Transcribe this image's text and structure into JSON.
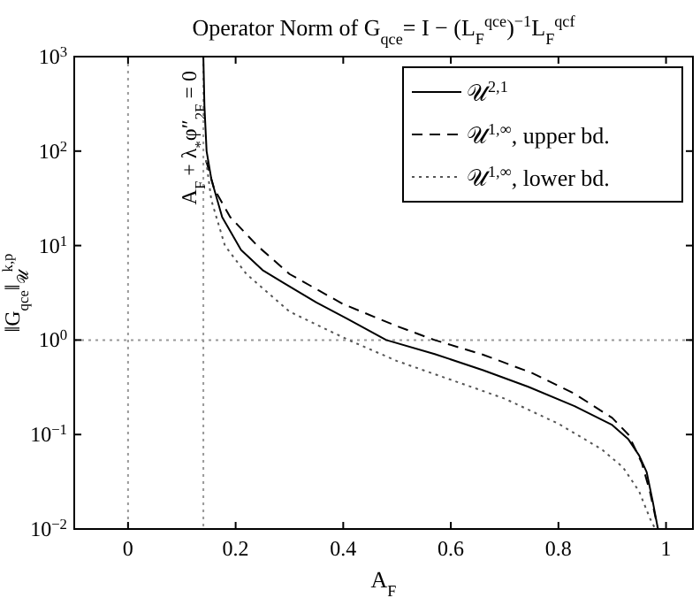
{
  "chart_data": {
    "type": "line",
    "title": "Operator Norm of G$_{qce}$= I − (L$_{F}$$^{qce}$)$^{−1}$L$_{F}$$^{qcf}$",
    "xlabel": "A$_{F}$",
    "ylabel": "‖G$_{qce}$‖$_{𝒰}$$^{k,p}$",
    "log": "y",
    "xlim": [
      -0.1,
      1.05
    ],
    "ylim": [
      0.01,
      1000
    ],
    "xticks": [
      0,
      0.2,
      0.4,
      0.6,
      0.8,
      1
    ],
    "yticks": [
      {
        "value": 0.01,
        "label": "10$^{−2}$"
      },
      {
        "value": 0.1,
        "label": "10$^{−1}$"
      },
      {
        "value": 1,
        "label": "10$^{0}$"
      },
      {
        "value": 10,
        "label": "10$^{1}$"
      },
      {
        "value": 100,
        "label": "10$^{2}$"
      },
      {
        "value": 1000,
        "label": "10$^{3}$"
      }
    ],
    "legend": "top right",
    "grid": false,
    "ref_lines": [
      {
        "axis": "x",
        "value": 0,
        "label": null,
        "color": "#999999",
        "line_style": "dotted"
      },
      {
        "axis": "x",
        "value": 0.14,
        "label": "A$_{F}$ + λ$_{*}$φ″$_{2F}$ = 0",
        "color": "#999999",
        "line_style": "dotted"
      },
      {
        "axis": "y",
        "value": 1,
        "label": null,
        "color": "#999999",
        "line_style": "dotted"
      }
    ],
    "series": [
      {
        "name": "𝒰$^{2,1}$",
        "color": "#000000",
        "line_style": "solid",
        "x": [
          0.14,
          0.142,
          0.146,
          0.155,
          0.175,
          0.21,
          0.25,
          0.29,
          0.35,
          0.406,
          0.48,
          0.57,
          0.66,
          0.744,
          0.83,
          0.9,
          0.93,
          0.95,
          0.964,
          0.975,
          0.985
        ],
        "values": [
          1000,
          300,
          100,
          50,
          20,
          9,
          5.5,
          4,
          2.5,
          1.7,
          1,
          0.71,
          0.48,
          0.32,
          0.2,
          0.126,
          0.089,
          0.06,
          0.04,
          0.02,
          0.01
        ]
      },
      {
        "name": "𝒰$^{1,∞}$, upper bd.",
        "color": "#000000",
        "line_style": "dashed",
        "x": [
          0.145,
          0.16,
          0.19,
          0.24,
          0.3,
          0.4,
          0.5,
          0.57,
          0.66,
          0.75,
          0.83,
          0.9,
          0.93,
          0.955,
          0.97,
          0.985
        ],
        "values": [
          80,
          40,
          20,
          10,
          5,
          2.4,
          1.4,
          1,
          0.7,
          0.45,
          0.27,
          0.15,
          0.1,
          0.05,
          0.025,
          0.01
        ]
      },
      {
        "name": "𝒰$^{1,∞}$, lower bd.",
        "color": "#555555",
        "line_style": "dotted",
        "x": [
          0.145,
          0.155,
          0.18,
          0.22,
          0.3,
          0.41,
          0.5,
          0.6,
          0.7,
          0.8,
          0.88,
          0.92,
          0.95,
          0.97,
          0.98
        ],
        "values": [
          80,
          30,
          10,
          5,
          2,
          1,
          0.6,
          0.38,
          0.24,
          0.13,
          0.07,
          0.045,
          0.025,
          0.013,
          0.01
        ]
      }
    ]
  }
}
